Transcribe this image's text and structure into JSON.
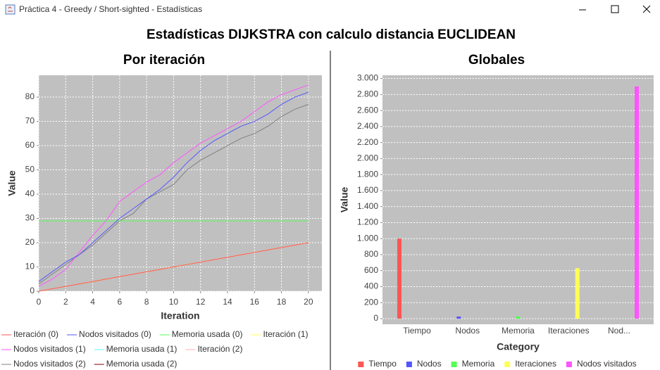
{
  "window_title": "Práctica 4 - Greedy / Short-sighted - Estadísticas",
  "title": "Estadísticas DIJKSTRA con calculo distancia EUCLIDEAN",
  "chart_data": [
    {
      "type": "line",
      "title": "Por iteración",
      "x_label": "Iteration",
      "y_label": "Value",
      "x": [
        0,
        1,
        2,
        3,
        4,
        5,
        6,
        7,
        8,
        9,
        10,
        11,
        12,
        13,
        14,
        15,
        16,
        17,
        18,
        19,
        20
      ],
      "xlim": [
        0,
        21
      ],
      "xticks": [
        0,
        2,
        4,
        6,
        8,
        10,
        12,
        14,
        16,
        18,
        20
      ],
      "ylim": [
        0,
        89
      ],
      "yticks": [
        0,
        10,
        20,
        30,
        40,
        50,
        60,
        70,
        80
      ],
      "grid": true,
      "series": [
        {
          "name": "Iteración (0)",
          "color": "#ff5555",
          "values": [
            0,
            1,
            2,
            3,
            4,
            5,
            6,
            7,
            8,
            9,
            10,
            11,
            12,
            13,
            14,
            15,
            16,
            17,
            18,
            19,
            20
          ]
        },
        {
          "name": "Nodos visitados (0)",
          "color": "#5555ff",
          "values": [
            4,
            8,
            12,
            15,
            20,
            25,
            30,
            34,
            38,
            42,
            47,
            53,
            58,
            62,
            65,
            68,
            70,
            73,
            77,
            80,
            82
          ]
        },
        {
          "name": "Memoria usada (0)",
          "color": "#55ff55",
          "values": [
            29,
            29,
            29,
            29,
            29,
            29,
            29,
            29,
            29,
            29,
            29,
            29,
            29,
            29,
            29,
            29,
            29,
            29,
            29,
            29,
            29
          ]
        },
        {
          "name": "Iteración (1)",
          "color": "#ffff55",
          "values": [
            0,
            1,
            2,
            3,
            4,
            5,
            6,
            7,
            8,
            9,
            10,
            11,
            12,
            13,
            14,
            15,
            16,
            17,
            18,
            19,
            20
          ]
        },
        {
          "name": "Nodos visitados (1)",
          "color": "#ff55ff",
          "values": [
            2,
            5,
            9,
            16,
            23,
            29,
            37,
            41,
            45,
            48,
            53,
            57,
            61,
            64,
            67,
            70,
            74,
            78,
            81,
            83,
            85
          ]
        },
        {
          "name": "Memoria usada (1)",
          "color": "#55ffff",
          "values": [
            29,
            29,
            29,
            29,
            29,
            29,
            29,
            29,
            29,
            29,
            29,
            29,
            29,
            29,
            29,
            29,
            29,
            29,
            29,
            29,
            29
          ]
        },
        {
          "name": "Iteración (2)",
          "color": "#ffafaf",
          "values": [
            0,
            1,
            2,
            3,
            4,
            5,
            6,
            7,
            8,
            9,
            10,
            11,
            12,
            13,
            14,
            15,
            16,
            17,
            18,
            19,
            20
          ]
        },
        {
          "name": "Nodos visitados (2)",
          "color": "#808080",
          "values": [
            3,
            7,
            11,
            15,
            19,
            24,
            29,
            32,
            38,
            41,
            44,
            50,
            54,
            57,
            60,
            63,
            65,
            68,
            72,
            75,
            77
          ]
        },
        {
          "name": "Memoria usada (2)",
          "color": "#800000",
          "values": [
            29,
            29,
            29,
            29,
            29,
            29,
            29,
            29,
            29,
            29,
            29,
            29,
            29,
            29,
            29,
            29,
            29,
            29,
            29,
            29,
            29
          ]
        }
      ]
    },
    {
      "type": "bar",
      "title": "Globales",
      "x_label": "Category",
      "y_label": "Value",
      "categories": [
        "Tiempo",
        "Nodos",
        "Memoria",
        "Iteraciones",
        "Nod..."
      ],
      "ylim": [
        -70,
        3040
      ],
      "yticks": [
        0,
        200,
        400,
        600,
        800,
        {
          "value": 1000,
          "label": "1.000"
        },
        {
          "value": 1200,
          "label": "1.200"
        },
        {
          "value": 1400,
          "label": "1.400"
        },
        {
          "value": 1600,
          "label": "1.600"
        },
        {
          "value": 1800,
          "label": "1.800"
        },
        {
          "value": 2000,
          "label": "2.000"
        },
        {
          "value": 2200,
          "label": "2.200"
        },
        {
          "value": 2400,
          "label": "2.400"
        },
        {
          "value": 2600,
          "label": "2.600"
        },
        {
          "value": 2800,
          "label": "2.800"
        },
        {
          "value": 3000,
          "label": "3.000"
        }
      ],
      "grid": true,
      "series": [
        {
          "name": "Tiempo",
          "color": "#ff5555",
          "values": [
            1000,
            0,
            0,
            0,
            0
          ]
        },
        {
          "name": "Nodos",
          "color": "#5555ff",
          "values": [
            0,
            26,
            0,
            0,
            0
          ]
        },
        {
          "name": "Memoria",
          "color": "#55ff55",
          "values": [
            0,
            0,
            29,
            0,
            0
          ]
        },
        {
          "name": "Iteraciones",
          "color": "#ffff55",
          "values": [
            0,
            0,
            0,
            630,
            0
          ]
        },
        {
          "name": "Nodos visitados",
          "color": "#ff55ff",
          "values": [
            0,
            0,
            0,
            0,
            2900
          ]
        }
      ]
    }
  ]
}
